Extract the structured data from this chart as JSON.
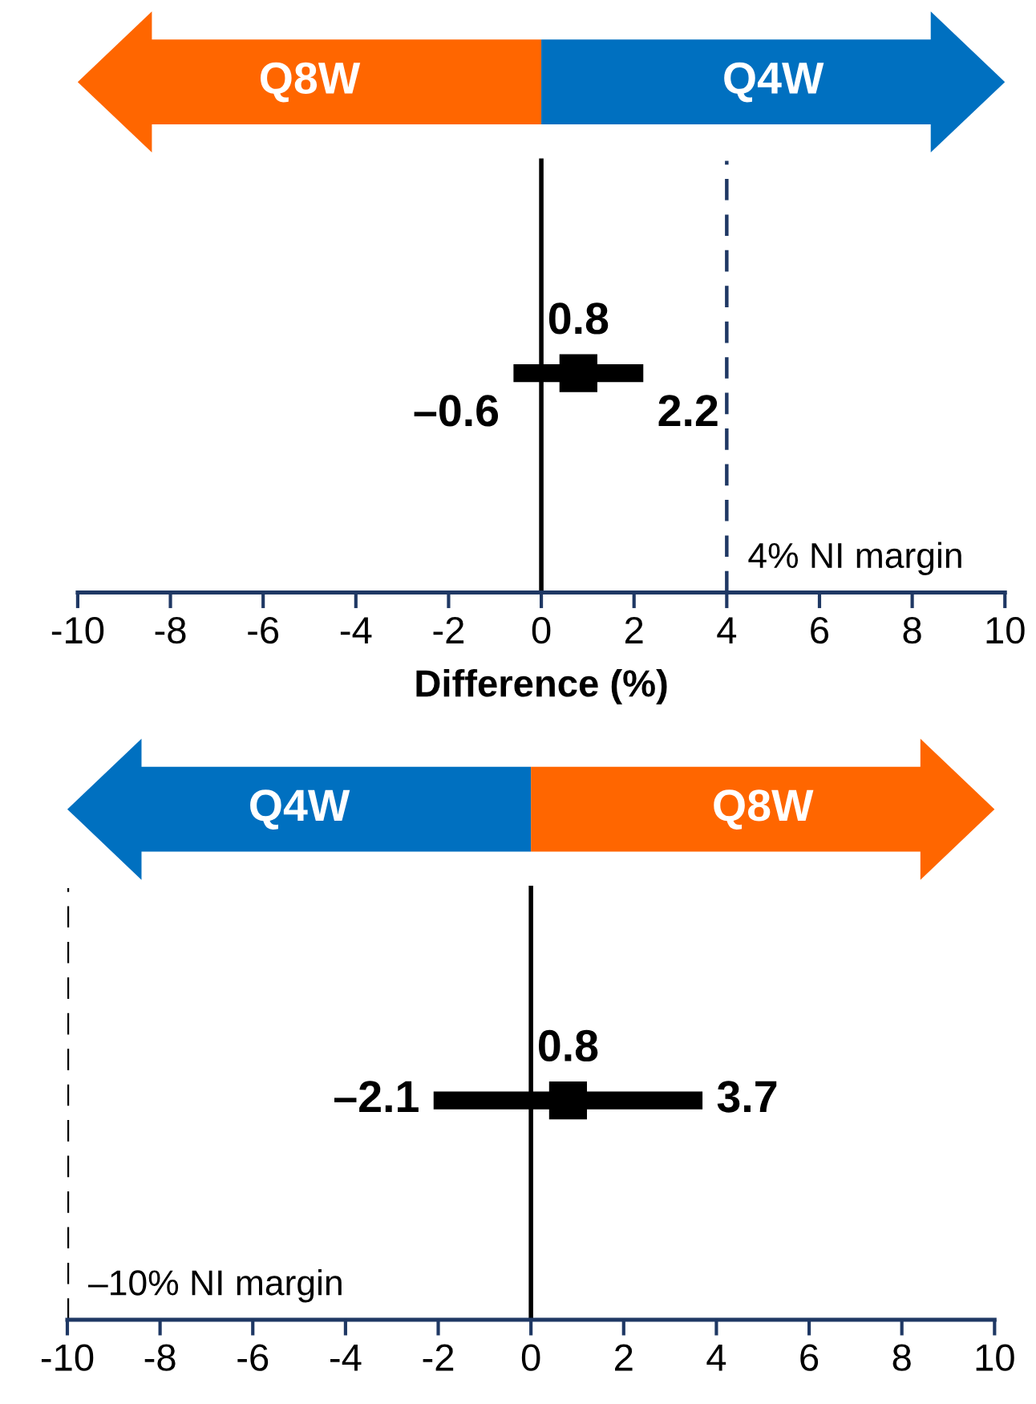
{
  "chart_data": [
    {
      "type": "scatter",
      "categories": [
        null
      ],
      "values": [
        0.8
      ],
      "orientation": "horizontal",
      "errors": [
        [
          -0.6,
          2.2
        ]
      ],
      "value_labels": [
        "0.8"
      ],
      "color": "#000000",
      "marker": "square",
      "xlim": [
        -10,
        10
      ],
      "xticks": [
        -10,
        -8,
        -6,
        -4,
        -2,
        0,
        2,
        4,
        6,
        8,
        10
      ],
      "xlabel": "Difference (%)",
      "tick_labels": "x",
      "grid": false,
      "ref_lines": [
        {
          "axis": "x",
          "value": 0,
          "color": "#000000",
          "line_style": "solid"
        },
        {
          "axis": "x",
          "value": 4,
          "label": "4% NI margin",
          "color": "#1f3864",
          "line_style": "dashed"
        }
      ],
      "annotations": [
        "–0.6",
        "2.2",
        "Q8W",
        "Q4W"
      ]
    },
    {
      "type": "scatter",
      "categories": [
        null
      ],
      "values": [
        0.8
      ],
      "orientation": "horizontal",
      "errors": [
        [
          -2.1,
          3.7
        ]
      ],
      "value_labels": [
        "0.8"
      ],
      "color": "#000000",
      "marker": "square",
      "xlim": [
        -10,
        10
      ],
      "xticks": [
        -10,
        -8,
        -6,
        -4,
        -2,
        0,
        2,
        4,
        6,
        8,
        10
      ],
      "tick_labels": "x",
      "grid": false,
      "ref_lines": [
        {
          "axis": "x",
          "value": 0,
          "color": "#000000",
          "line_style": "solid"
        },
        {
          "axis": "x",
          "value": -10,
          "label": "–10% NI margin",
          "color": "#000000",
          "line_style": "dashed"
        }
      ],
      "annotations": [
        "–2.1",
        "3.7",
        "Q4W",
        "Q8W"
      ]
    }
  ]
}
